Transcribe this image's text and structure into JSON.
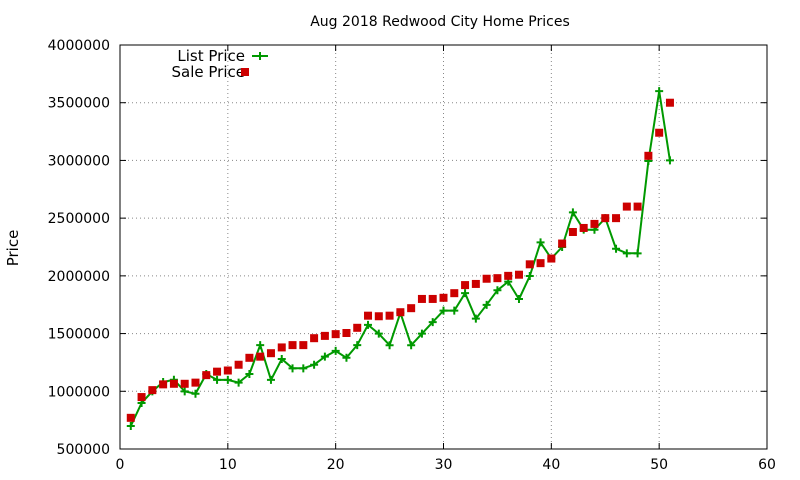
{
  "chart_data": {
    "type": "line",
    "title": "Aug 2018 Redwood City Home Prices",
    "xlabel": "",
    "ylabel": "Price",
    "xlim": [
      0,
      60
    ],
    "ylim": [
      500000,
      4000000
    ],
    "xticks": [
      0,
      10,
      20,
      30,
      40,
      50,
      60
    ],
    "yticks": [
      500000,
      1000000,
      1500000,
      2000000,
      2500000,
      3000000,
      3500000,
      4000000
    ],
    "grid": true,
    "legend_position": "top-left",
    "series": [
      {
        "name": "List Price",
        "style": "line+cross",
        "color": "#009900",
        "x": [
          1,
          2,
          3,
          4,
          5,
          6,
          7,
          8,
          9,
          10,
          11,
          12,
          13,
          14,
          15,
          16,
          17,
          18,
          19,
          20,
          21,
          22,
          23,
          24,
          25,
          26,
          27,
          28,
          29,
          30,
          31,
          32,
          33,
          34,
          35,
          36,
          37,
          38,
          39,
          40,
          41,
          42,
          43,
          44,
          45,
          46,
          47,
          48,
          49,
          50,
          51
        ],
        "y": [
          699000,
          899000,
          999000,
          1080000,
          1100000,
          999000,
          979000,
          1150000,
          1099000,
          1099000,
          1075000,
          1150000,
          1400000,
          1099000,
          1280000,
          1199000,
          1199000,
          1230000,
          1300000,
          1350000,
          1290000,
          1400000,
          1575000,
          1499000,
          1399000,
          1680000,
          1399000,
          1499000,
          1599000,
          1699000,
          1699000,
          1850000,
          1629000,
          1749000,
          1875000,
          1950000,
          1799000,
          1999000,
          2290000,
          2150000,
          2250000,
          2550000,
          2400000,
          2399000,
          2500000,
          2235000,
          2195000,
          2195000,
          2995000,
          3600000,
          3000000
        ]
      },
      {
        "name": "Sale Price",
        "style": "square",
        "color": "#cc0000",
        "x": [
          1,
          2,
          3,
          4,
          5,
          6,
          7,
          8,
          9,
          10,
          11,
          12,
          13,
          14,
          15,
          16,
          17,
          18,
          19,
          20,
          21,
          22,
          23,
          24,
          25,
          26,
          27,
          28,
          29,
          30,
          31,
          32,
          33,
          34,
          35,
          36,
          37,
          38,
          39,
          40,
          41,
          42,
          43,
          44,
          45,
          46,
          47,
          48,
          49,
          50,
          51
        ],
        "y": [
          770000,
          950000,
          1010000,
          1060000,
          1065000,
          1065000,
          1075000,
          1140000,
          1170000,
          1180000,
          1230000,
          1290000,
          1300000,
          1330000,
          1380000,
          1400000,
          1400000,
          1460000,
          1480000,
          1495000,
          1505000,
          1550000,
          1655000,
          1650000,
          1655000,
          1685000,
          1720000,
          1800000,
          1800000,
          1810000,
          1850000,
          1920000,
          1930000,
          1975000,
          1980000,
          2000000,
          2010000,
          2100000,
          2110000,
          2150000,
          2280000,
          2380000,
          2415000,
          2450000,
          2500000,
          2500000,
          2600000,
          2600000,
          3040000,
          3240000,
          3500000
        ]
      }
    ]
  }
}
